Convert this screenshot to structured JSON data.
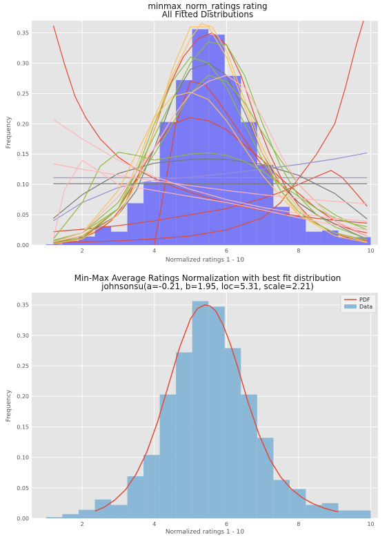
{
  "chart_data": [
    {
      "type": "bar",
      "title": "minmax_norm_ratings rating",
      "subtitle": "All Fitted Distributions",
      "xlabel": "Normalized ratings 1 - 10",
      "ylabel": "Frequency",
      "xlim": [
        0.6,
        10.2
      ],
      "ylim": [
        0,
        0.37
      ],
      "xticks": [
        2,
        4,
        6,
        8,
        10
      ],
      "yticks": [
        0.0,
        0.05,
        0.1,
        0.15,
        0.2,
        0.25,
        0.3,
        0.35
      ],
      "grid": true,
      "bar_color": "#7b7bf5",
      "bin_edges": [
        1.0,
        1.45,
        1.9,
        2.35,
        2.8,
        3.25,
        3.7,
        4.15,
        4.6,
        5.05,
        5.5,
        5.95,
        6.4,
        6.85,
        7.3,
        7.75,
        8.2,
        8.65,
        9.1,
        9.55,
        10.0
      ],
      "values": [
        0.001,
        0.007,
        0.014,
        0.031,
        0.022,
        0.069,
        0.104,
        0.203,
        0.272,
        0.356,
        0.347,
        0.279,
        0.203,
        0.132,
        0.063,
        0.048,
        0.022,
        0.024,
        0.013,
        0.013
      ],
      "series": [
        {
          "color": "#e24a33",
          "x": [
            1.2,
            1.6,
            2.0,
            2.4,
            2.8,
            3.2,
            3.6,
            4.0,
            4.4,
            4.8,
            5.2,
            5.6,
            6.0,
            6.4,
            6.8,
            7.2,
            7.6,
            8.0,
            8.4,
            8.8,
            9.2,
            9.6,
            9.9
          ],
          "y": [
            0.001,
            0.005,
            0.012,
            0.022,
            0.04,
            0.07,
            0.12,
            0.19,
            0.26,
            0.31,
            0.34,
            0.35,
            0.33,
            0.28,
            0.21,
            0.15,
            0.1,
            0.065,
            0.04,
            0.025,
            0.015,
            0.01,
            0.007
          ]
        },
        {
          "color": "#e24a33",
          "x": [
            1.2,
            1.5,
            1.8,
            2.1,
            2.5,
            3.0,
            3.5,
            4.0,
            4.5,
            5.0,
            5.5,
            6.0,
            6.5,
            7.0,
            7.5,
            8.0,
            8.5,
            9.0,
            9.5,
            9.9
          ],
          "y": [
            0.362,
            0.3,
            0.245,
            0.21,
            0.175,
            0.145,
            0.125,
            0.11,
            0.097,
            0.087,
            0.078,
            0.07,
            0.063,
            0.057,
            0.052,
            0.048,
            0.044,
            0.041,
            0.038,
            0.036
          ]
        },
        {
          "color": "#e24a33",
          "x": [
            1.2,
            2.0,
            3.0,
            4.0,
            5.0,
            6.0,
            7.0,
            7.5,
            8.0,
            8.5,
            9.0,
            9.3,
            9.6,
            9.8
          ],
          "y": [
            0.004,
            0.005,
            0.007,
            0.01,
            0.015,
            0.025,
            0.045,
            0.07,
            0.11,
            0.15,
            0.2,
            0.26,
            0.33,
            0.37
          ]
        },
        {
          "color": "#e24a33",
          "x": [
            1.2,
            2.0,
            3.0,
            4.0,
            4.5,
            5.0,
            5.5,
            6.0,
            6.5,
            7.0,
            7.5,
            8.0,
            8.5,
            9.0,
            9.5,
            9.9
          ],
          "y": [
            0.005,
            0.01,
            0.06,
            0.16,
            0.2,
            0.21,
            0.205,
            0.19,
            0.165,
            0.14,
            0.11,
            0.085,
            0.06,
            0.04,
            0.025,
            0.015
          ]
        },
        {
          "color": "#e24a33",
          "x": [
            1.2,
            2.0,
            3.0,
            4.0,
            5.0,
            6.0,
            7.0,
            7.5,
            8.0,
            8.5,
            8.9,
            9.2,
            9.5,
            9.9
          ],
          "y": [
            0.022,
            0.026,
            0.032,
            0.04,
            0.05,
            0.06,
            0.077,
            0.087,
            0.1,
            0.113,
            0.123,
            0.112,
            0.092,
            0.064
          ]
        },
        {
          "color": "#e24a33",
          "x": [
            4.0,
            4.3,
            4.6,
            5.0,
            5.4,
            5.8,
            6.2,
            6.6,
            7.0,
            7.5,
            8.0,
            8.5,
            9.0,
            9.5,
            9.9
          ],
          "y": [
            0.0,
            0.1,
            0.2,
            0.27,
            0.265,
            0.235,
            0.2,
            0.165,
            0.13,
            0.1,
            0.07,
            0.05,
            0.035,
            0.025,
            0.02
          ]
        },
        {
          "color": "#988ed5",
          "x": [
            1.2,
            2.0,
            3.0,
            4.0,
            5.0,
            6.0,
            7.0,
            8.0,
            9.0,
            9.9
          ],
          "y": [
            0.04,
            0.07,
            0.095,
            0.107,
            0.112,
            0.118,
            0.125,
            0.133,
            0.142,
            0.152
          ]
        },
        {
          "color": "#988ed5",
          "x": [
            1.2,
            9.9
          ],
          "y": [
            0.111,
            0.111
          ]
        },
        {
          "color": "#777777",
          "x": [
            1.2,
            9.9
          ],
          "y": [
            0.101,
            0.101
          ]
        },
        {
          "color": "#777777",
          "x": [
            1.2,
            2.0,
            3.0,
            4.0,
            5.0,
            5.5,
            6.0,
            7.0,
            8.0,
            9.0,
            9.9
          ],
          "y": [
            0.044,
            0.083,
            0.118,
            0.135,
            0.141,
            0.142,
            0.141,
            0.133,
            0.115,
            0.085,
            0.043
          ]
        },
        {
          "color": "#777777",
          "x": [
            1.2,
            2.0,
            3.0,
            3.5,
            4.0,
            4.5,
            5.0,
            5.5,
            6.0,
            6.5,
            7.0,
            7.5,
            8.0,
            8.5,
            9.0,
            9.5,
            9.9
          ],
          "y": [
            0.003,
            0.015,
            0.05,
            0.09,
            0.16,
            0.24,
            0.29,
            0.3,
            0.28,
            0.22,
            0.15,
            0.1,
            0.07,
            0.05,
            0.035,
            0.02,
            0.01
          ]
        },
        {
          "color": "#fbc15e",
          "x": [
            1.2,
            2.0,
            3.0,
            3.5,
            4.0,
            4.5,
            5.0,
            5.3,
            5.6,
            6.0,
            6.5,
            7.0,
            7.5,
            8.0,
            8.5,
            9.0,
            9.9
          ],
          "y": [
            0.005,
            0.015,
            0.06,
            0.13,
            0.21,
            0.28,
            0.34,
            0.365,
            0.36,
            0.32,
            0.24,
            0.16,
            0.1,
            0.06,
            0.035,
            0.02,
            0.005
          ]
        },
        {
          "color": "#fbc15e",
          "x": [
            1.2,
            2.0,
            3.0,
            3.5,
            4.0,
            4.5,
            5.0,
            5.5,
            6.0,
            6.5,
            7.0,
            7.5,
            8.0,
            9.0,
            9.9
          ],
          "y": [
            0.002,
            0.01,
            0.05,
            0.1,
            0.19,
            0.29,
            0.36,
            0.36,
            0.31,
            0.23,
            0.15,
            0.09,
            0.05,
            0.015,
            0.004
          ]
        },
        {
          "color": "#fbc15e",
          "x": [
            1.2,
            2.0,
            3.0,
            3.5,
            4.0,
            4.5,
            5.0,
            5.5,
            6.0,
            6.5,
            7.0,
            7.5,
            8.0,
            9.0,
            9.9
          ],
          "y": [
            0.006,
            0.02,
            0.09,
            0.15,
            0.21,
            0.245,
            0.252,
            0.24,
            0.205,
            0.16,
            0.115,
            0.08,
            0.05,
            0.02,
            0.008
          ]
        },
        {
          "color": "#8eba42",
          "x": [
            1.2,
            2.0,
            2.5,
            3.0,
            3.5,
            4.0,
            4.5,
            5.0,
            5.5,
            6.0,
            6.5,
            7.0,
            7.5,
            8.0,
            8.5,
            9.0,
            9.5,
            9.9
          ],
          "y": [
            0.01,
            0.07,
            0.13,
            0.153,
            0.148,
            0.14,
            0.145,
            0.15,
            0.152,
            0.148,
            0.138,
            0.122,
            0.1,
            0.08,
            0.06,
            0.045,
            0.035,
            0.03
          ]
        },
        {
          "color": "#8eba42",
          "x": [
            1.2,
            2.0,
            3.0,
            3.5,
            4.0,
            4.5,
            5.0,
            5.5,
            6.0,
            6.5,
            7.0,
            7.5,
            8.0,
            8.5,
            9.0,
            9.9
          ],
          "y": [
            0.003,
            0.012,
            0.06,
            0.12,
            0.2,
            0.27,
            0.31,
            0.3,
            0.26,
            0.2,
            0.14,
            0.09,
            0.055,
            0.035,
            0.02,
            0.008
          ]
        },
        {
          "color": "#8eba42",
          "x": [
            1.2,
            2.0,
            3.0,
            3.5,
            4.0,
            4.5,
            5.0,
            5.5,
            6.0,
            6.5,
            7.0,
            7.5,
            8.0,
            8.5,
            9.0,
            9.9
          ],
          "y": [
            0.006,
            0.02,
            0.07,
            0.12,
            0.18,
            0.24,
            0.3,
            0.335,
            0.33,
            0.28,
            0.2,
            0.13,
            0.08,
            0.05,
            0.03,
            0.01
          ]
        },
        {
          "color": "#8eba42",
          "x": [
            1.2,
            2.0,
            3.0,
            4.0,
            4.5,
            5.0,
            5.5,
            6.0,
            6.5,
            7.0,
            7.5,
            8.0,
            8.5,
            9.0,
            9.5,
            9.9
          ],
          "y": [
            0.008,
            0.02,
            0.06,
            0.15,
            0.2,
            0.25,
            0.28,
            0.27,
            0.235,
            0.185,
            0.14,
            0.1,
            0.07,
            0.05,
            0.035,
            0.025
          ]
        },
        {
          "color": "#ffb5b8",
          "x": [
            1.2,
            2.0,
            3.0,
            4.0,
            5.0,
            6.0,
            7.0,
            8.0,
            9.0,
            9.9
          ],
          "y": [
            0.207,
            0.175,
            0.14,
            0.113,
            0.092,
            0.075,
            0.062,
            0.052,
            0.044,
            0.039
          ]
        },
        {
          "color": "#ffb5b8",
          "x": [
            1.2,
            2.0,
            3.0,
            4.0,
            5.0,
            6.0,
            7.0,
            8.0,
            9.0,
            9.9
          ],
          "y": [
            0.134,
            0.125,
            0.115,
            0.106,
            0.098,
            0.09,
            0.083,
            0.077,
            0.072,
            0.068
          ]
        },
        {
          "color": "#ffb5b8",
          "x": [
            1.2,
            1.5,
            2.0,
            2.5,
            3.0,
            4.0,
            5.0,
            6.0,
            7.0,
            8.0,
            9.0,
            9.9
          ],
          "y": [
            0.01,
            0.09,
            0.14,
            0.12,
            0.1,
            0.09,
            0.08,
            0.07,
            0.058,
            0.045,
            0.033,
            0.025
          ]
        },
        {
          "color": "#ffb5b8",
          "x": [
            1.2,
            2.0,
            3.0,
            4.0,
            4.5,
            5.0,
            5.5,
            6.0,
            6.5,
            7.0,
            7.5,
            8.0,
            9.0,
            9.9
          ],
          "y": [
            0.005,
            0.02,
            0.08,
            0.16,
            0.21,
            0.25,
            0.27,
            0.28,
            0.26,
            0.21,
            0.15,
            0.1,
            0.04,
            0.015
          ]
        }
      ]
    },
    {
      "type": "bar",
      "title": "Min-Max Average Ratings Normalization with best fit distribution",
      "subtitle": "johnsonsu(a=-0.21, b=1.95, loc=5.31, scale=2.21)",
      "xlabel": "Normalized ratings 1 - 10",
      "ylabel": "Frequency",
      "xlim": [
        0.6,
        10.2
      ],
      "ylim": [
        0,
        0.37
      ],
      "xticks": [
        2,
        4,
        6,
        8,
        10
      ],
      "yticks": [
        0.0,
        0.05,
        0.1,
        0.15,
        0.2,
        0.25,
        0.3,
        0.35
      ],
      "grid": true,
      "legend_position": "top-right",
      "bar_color": "#8ab8d6",
      "pdf_color": "#e24a33",
      "bin_edges": [
        1.0,
        1.45,
        1.9,
        2.35,
        2.8,
        3.25,
        3.7,
        4.15,
        4.6,
        5.05,
        5.5,
        5.95,
        6.4,
        6.85,
        7.3,
        7.75,
        8.2,
        8.65,
        9.1,
        9.55,
        10.0
      ],
      "values": [
        0.002,
        0.007,
        0.014,
        0.031,
        0.022,
        0.069,
        0.104,
        0.203,
        0.272,
        0.356,
        0.347,
        0.279,
        0.203,
        0.132,
        0.063,
        0.048,
        0.022,
        0.025,
        0.013,
        0.013
      ],
      "pdf": {
        "x": [
          2.35,
          2.6,
          2.9,
          3.2,
          3.5,
          3.8,
          4.1,
          4.4,
          4.7,
          5.0,
          5.2,
          5.4,
          5.55,
          5.7,
          5.9,
          6.1,
          6.3,
          6.6,
          6.9,
          7.2,
          7.5,
          7.8,
          8.1,
          8.4,
          8.7,
          9.0,
          9.1
        ],
        "y": [
          0.012,
          0.018,
          0.03,
          0.047,
          0.073,
          0.11,
          0.16,
          0.22,
          0.28,
          0.327,
          0.344,
          0.35,
          0.348,
          0.34,
          0.318,
          0.287,
          0.25,
          0.19,
          0.138,
          0.097,
          0.068,
          0.048,
          0.034,
          0.024,
          0.017,
          0.012,
          0.011
        ]
      },
      "legend": [
        {
          "label": "PDF",
          "kind": "line"
        },
        {
          "label": "Data",
          "kind": "patch"
        }
      ]
    }
  ]
}
